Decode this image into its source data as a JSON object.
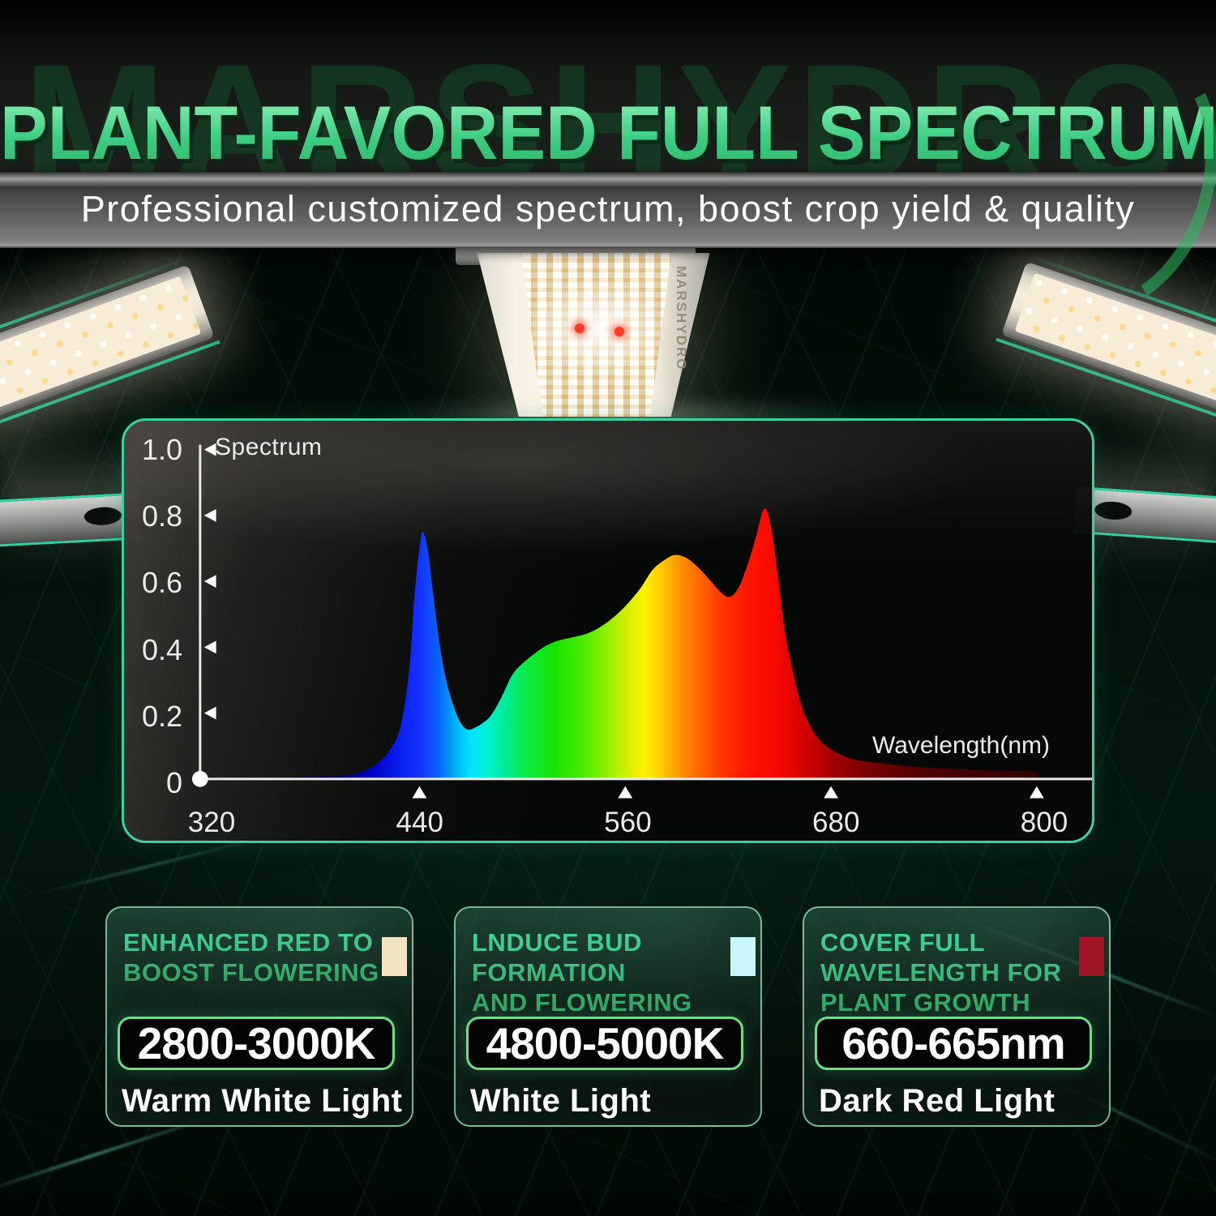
{
  "header": {
    "watermark": "MARSHYDRO",
    "title": "PLANT-FAVORED FULL SPECTRUM",
    "subtitle": "Professional customized spectrum, boost crop yield & quality"
  },
  "fixture": {
    "brand_label": "MARSHYDRO"
  },
  "chart_data": {
    "type": "area",
    "title": "Spectrum",
    "xlabel": "Wavelength(nm)",
    "ylabel": "Spectrum",
    "xlim": [
      320,
      800
    ],
    "ylim": [
      0,
      1.0
    ],
    "grid": false,
    "legend": "none",
    "x_ticks": [
      "320",
      "440",
      "560",
      "680",
      "800"
    ],
    "y_ticks": [
      "0",
      "0.2",
      "0.4",
      "0.6",
      "0.8",
      "1.0"
    ],
    "points": [
      [
        320,
        0
      ],
      [
        355,
        0.004
      ],
      [
        380,
        0.007
      ],
      [
        398,
        0.012
      ],
      [
        408,
        0.025
      ],
      [
        416,
        0.05
      ],
      [
        423,
        0.09
      ],
      [
        429,
        0.16
      ],
      [
        434,
        0.33
      ],
      [
        437,
        0.55
      ],
      [
        440,
        0.7
      ],
      [
        442,
        0.75
      ],
      [
        445,
        0.69
      ],
      [
        448,
        0.56
      ],
      [
        452,
        0.4
      ],
      [
        456,
        0.29
      ],
      [
        460,
        0.22
      ],
      [
        464,
        0.17
      ],
      [
        468,
        0.15
      ],
      [
        472,
        0.155
      ],
      [
        477,
        0.17
      ],
      [
        482,
        0.195
      ],
      [
        488,
        0.25
      ],
      [
        494,
        0.315
      ],
      [
        500,
        0.35
      ],
      [
        507,
        0.38
      ],
      [
        514,
        0.405
      ],
      [
        521,
        0.42
      ],
      [
        529,
        0.43
      ],
      [
        537,
        0.44
      ],
      [
        545,
        0.46
      ],
      [
        553,
        0.49
      ],
      [
        561,
        0.53
      ],
      [
        569,
        0.58
      ],
      [
        576,
        0.635
      ],
      [
        583,
        0.665
      ],
      [
        589,
        0.68
      ],
      [
        596,
        0.67
      ],
      [
        603,
        0.64
      ],
      [
        610,
        0.6
      ],
      [
        616,
        0.565
      ],
      [
        621,
        0.553
      ],
      [
        626,
        0.58
      ],
      [
        631,
        0.645
      ],
      [
        636,
        0.73
      ],
      [
        641,
        0.82
      ],
      [
        645,
        0.765
      ],
      [
        649,
        0.62
      ],
      [
        653,
        0.45
      ],
      [
        658,
        0.32
      ],
      [
        663,
        0.22
      ],
      [
        669,
        0.15
      ],
      [
        676,
        0.105
      ],
      [
        684,
        0.078
      ],
      [
        693,
        0.06
      ],
      [
        705,
        0.05
      ],
      [
        722,
        0.04
      ],
      [
        745,
        0.032
      ],
      [
        770,
        0.027
      ],
      [
        800,
        0.023
      ]
    ],
    "spectrum_gradient": [
      [
        320,
        "#000022"
      ],
      [
        395,
        "#000066"
      ],
      [
        413,
        "#0000cc"
      ],
      [
        428,
        "#0a1ef0"
      ],
      [
        440,
        "#1432ff"
      ],
      [
        451,
        "#0a62ff"
      ],
      [
        461,
        "#00b2f2"
      ],
      [
        469,
        "#00e2ff"
      ],
      [
        479,
        "#00f0d4"
      ],
      [
        491,
        "#00ec92"
      ],
      [
        503,
        "#0ae93e"
      ],
      [
        519,
        "#16e400"
      ],
      [
        536,
        "#4eec00"
      ],
      [
        551,
        "#9af000"
      ],
      [
        562,
        "#d6f000"
      ],
      [
        571,
        "#fff200"
      ],
      [
        581,
        "#ffca00"
      ],
      [
        591,
        "#ff9800"
      ],
      [
        601,
        "#ff7000"
      ],
      [
        611,
        "#ff4800"
      ],
      [
        621,
        "#ff2a00"
      ],
      [
        633,
        "#ff1400"
      ],
      [
        644,
        "#fa0c00"
      ],
      [
        655,
        "#e90500"
      ],
      [
        667,
        "#cc0000"
      ],
      [
        681,
        "#a30000"
      ],
      [
        699,
        "#7c0000"
      ],
      [
        725,
        "#590000"
      ],
      [
        758,
        "#420000"
      ],
      [
        800,
        "#310000"
      ]
    ]
  },
  "cards": [
    {
      "title_lines": [
        "ENHANCED RED TO",
        "BOOST FLOWERING"
      ],
      "swatch_color": "#f2e3c1",
      "value": "2800-3000K",
      "label": "Warm White Light"
    },
    {
      "title_lines": [
        "LNDUCE BUD",
        "FORMATION",
        "AND FLOWERING"
      ],
      "swatch_color": "#c9f6f9",
      "value": "4800-5000K",
      "label": "White Light"
    },
    {
      "title_lines": [
        "COVER FULL",
        "WAVELENGTH FOR",
        "PLANT GROWTH"
      ],
      "swatch_color": "#a01523",
      "value": "660-665nm",
      "label": "Dark Red Light"
    }
  ],
  "colors": {
    "accent_green": "#3ecf9f",
    "title_green_light": "#84ecb0",
    "title_green_dark": "#2eb86b",
    "card_title_light": "#44d79b",
    "card_title_dark": "#2fa05c",
    "pill_border": "#6fdc85",
    "card_border": "#9fe3c0",
    "axis": "#ebebeb"
  }
}
